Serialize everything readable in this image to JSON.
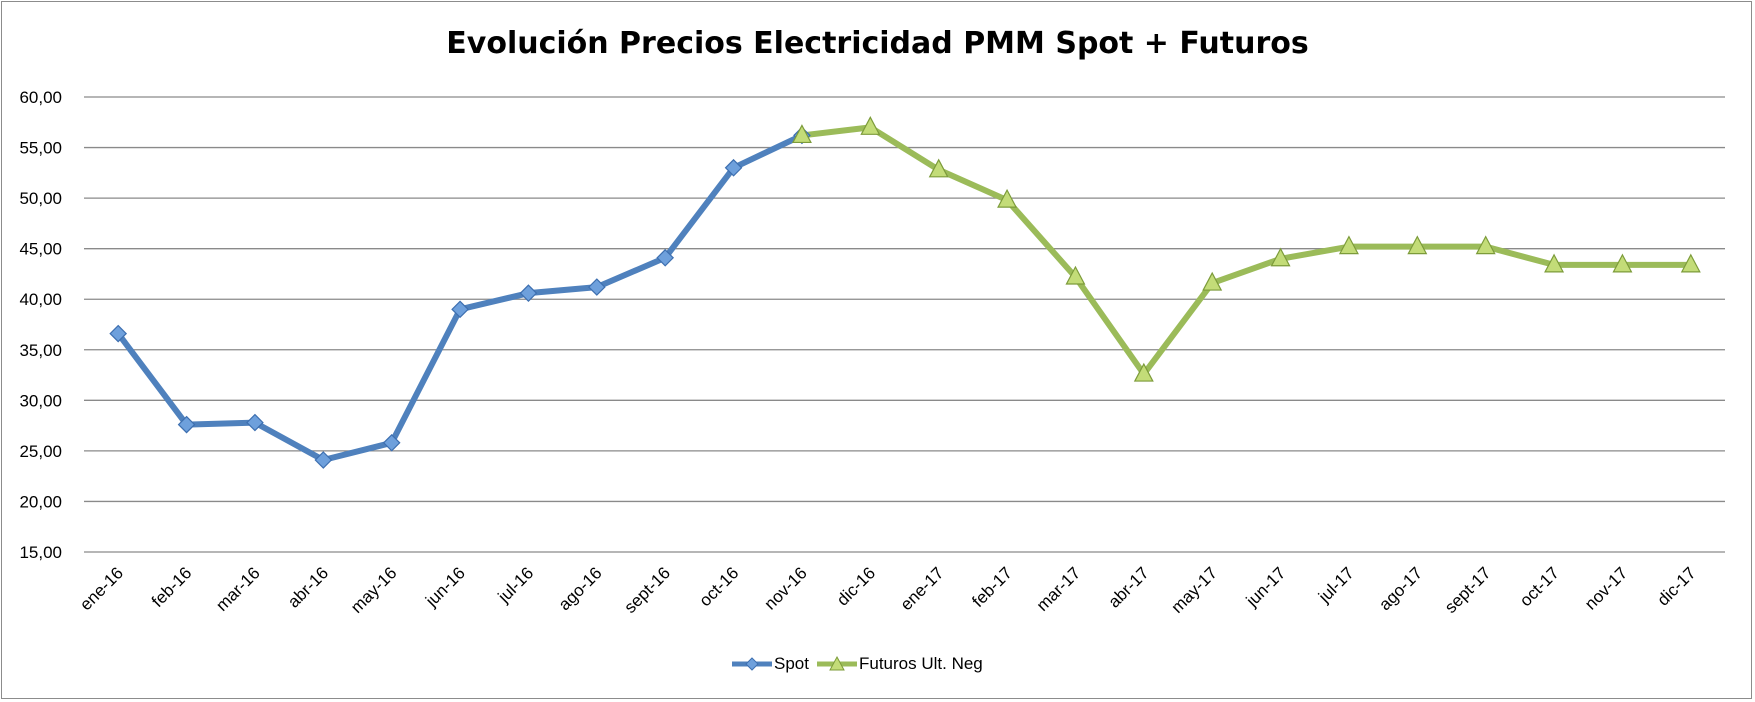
{
  "chart_data": {
    "type": "line",
    "title": "Evolución Precios Electricidad PMM Spot + Futuros",
    "xlabel": "",
    "ylabel": "",
    "ylim": [
      15,
      60
    ],
    "yticks": [
      "15,00",
      "20,00",
      "25,00",
      "30,00",
      "35,00",
      "40,00",
      "45,00",
      "50,00",
      "55,00",
      "60,00"
    ],
    "categories": [
      "ene-16",
      "feb-16",
      "mar-16",
      "abr-16",
      "may-16",
      "jun-16",
      "jul-16",
      "ago-16",
      "sept-16",
      "oct-16",
      "nov-16",
      "dic-16",
      "ene-17",
      "feb-17",
      "mar-17",
      "abr-17",
      "may-17",
      "jun-17",
      "jul-17",
      "ago-17",
      "sept-17",
      "oct-17",
      "nov-17",
      "dic-17"
    ],
    "series": [
      {
        "name": "Spot",
        "color": "#4f81bd",
        "marker": "diamond",
        "values": [
          36.6,
          27.6,
          27.8,
          24.1,
          25.8,
          39.0,
          40.6,
          41.2,
          44.1,
          53.0,
          56.2,
          null,
          null,
          null,
          null,
          null,
          null,
          null,
          null,
          null,
          null,
          null,
          null,
          null
        ]
      },
      {
        "name": "Futuros Ult. Neg",
        "color": "#9bbb59",
        "marker": "triangle",
        "values": [
          null,
          null,
          null,
          null,
          null,
          null,
          null,
          null,
          null,
          null,
          56.2,
          57.0,
          52.8,
          49.8,
          42.2,
          32.6,
          41.6,
          44.0,
          45.2,
          45.2,
          45.2,
          43.4,
          43.4,
          43.4
        ]
      }
    ],
    "grid": true,
    "legend_position": "bottom"
  }
}
